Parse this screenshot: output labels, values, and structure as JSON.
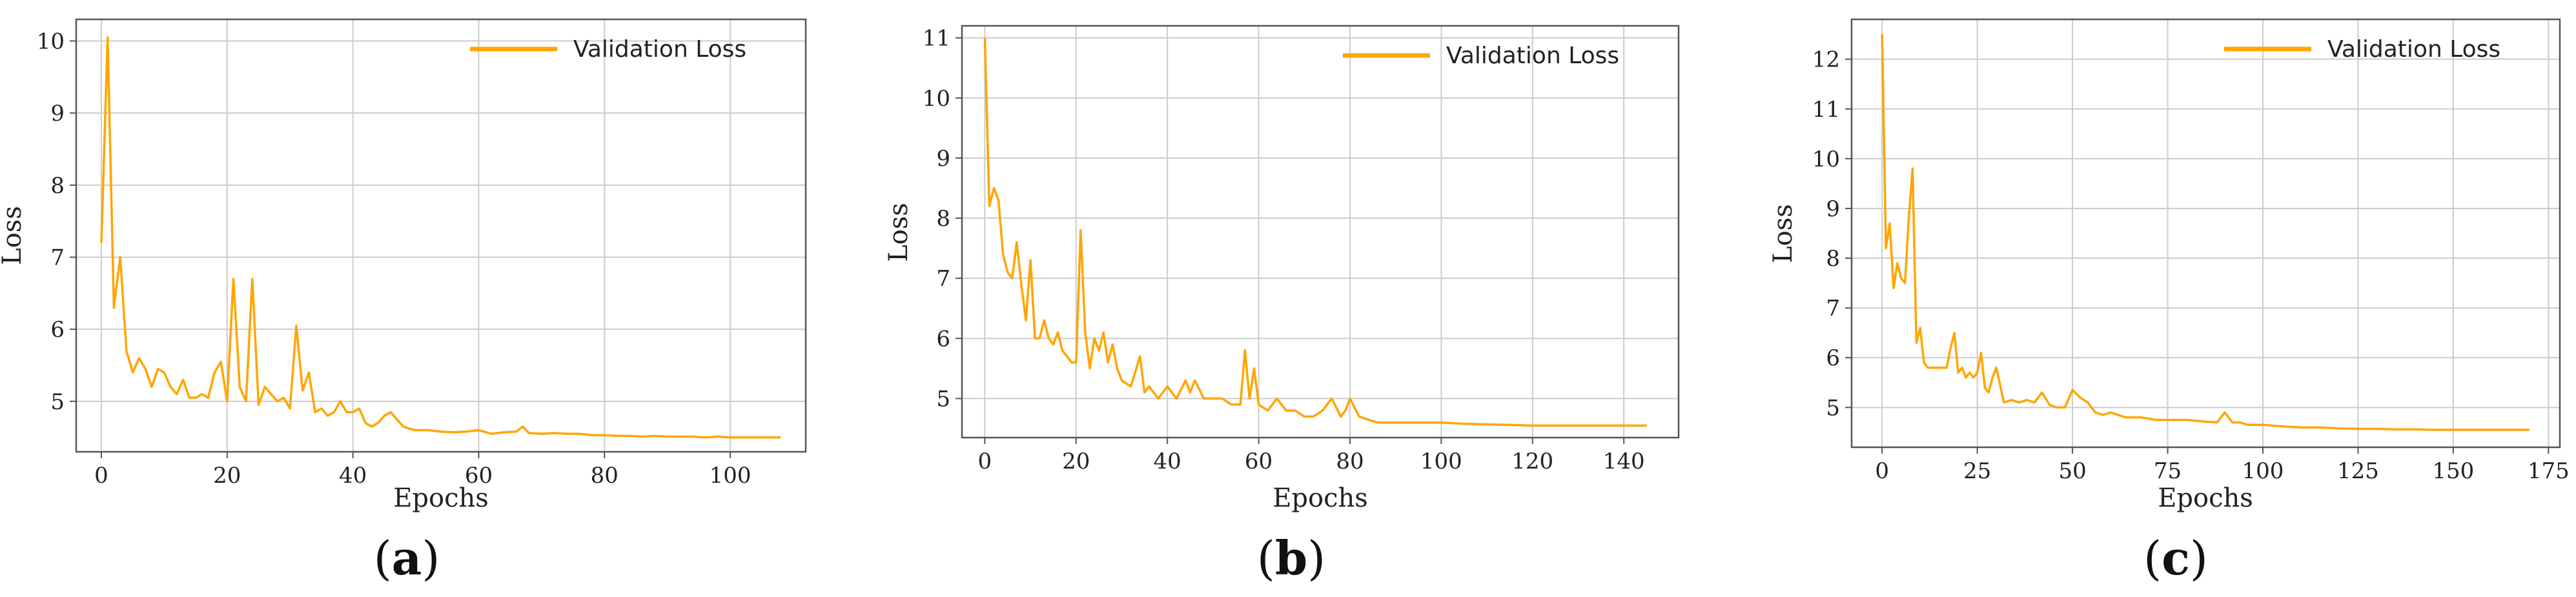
{
  "colors": {
    "line": "#FFA500",
    "grid": "#cccccc",
    "frame": "#555555"
  },
  "chart_data": [
    {
      "type": "line",
      "caption": "a",
      "xlabel": "Epochs",
      "ylabel": "Loss",
      "xlim": [
        -4,
        112
      ],
      "ylim": [
        4.3,
        10.3
      ],
      "xticks": [
        "0",
        "20",
        "40",
        "60",
        "80",
        "100"
      ],
      "yticks": [
        "5",
        "6",
        "7",
        "8",
        "9",
        "10"
      ],
      "grid": true,
      "legend_position": "top-right",
      "series": [
        {
          "name": "Validation Loss",
          "x": [
            0,
            1,
            2,
            3,
            4,
            5,
            6,
            7,
            8,
            9,
            10,
            11,
            12,
            13,
            14,
            15,
            16,
            17,
            18,
            19,
            20,
            21,
            22,
            23,
            24,
            25,
            26,
            27,
            28,
            29,
            30,
            31,
            32,
            33,
            34,
            35,
            36,
            37,
            38,
            39,
            40,
            41,
            42,
            43,
            44,
            45,
            46,
            47,
            48,
            49,
            50,
            52,
            54,
            56,
            58,
            60,
            62,
            64,
            66,
            67,
            68,
            70,
            72,
            74,
            76,
            78,
            80,
            82,
            84,
            86,
            88,
            90,
            92,
            94,
            96,
            98,
            100,
            102,
            104,
            106,
            108
          ],
          "y": [
            7.2,
            10.05,
            6.3,
            7.0,
            5.7,
            5.4,
            5.6,
            5.45,
            5.2,
            5.45,
            5.4,
            5.2,
            5.1,
            5.3,
            5.05,
            5.05,
            5.1,
            5.05,
            5.4,
            5.55,
            5.0,
            6.7,
            5.2,
            5.0,
            6.7,
            4.95,
            5.2,
            5.1,
            5.0,
            5.05,
            4.9,
            6.05,
            5.15,
            5.4,
            4.85,
            4.9,
            4.8,
            4.85,
            5.0,
            4.85,
            4.85,
            4.9,
            4.7,
            4.65,
            4.7,
            4.8,
            4.85,
            4.75,
            4.65,
            4.62,
            4.6,
            4.6,
            4.58,
            4.57,
            4.58,
            4.6,
            4.55,
            4.57,
            4.58,
            4.65,
            4.56,
            4.55,
            4.56,
            4.55,
            4.55,
            4.53,
            4.53,
            4.52,
            4.52,
            4.51,
            4.52,
            4.51,
            4.51,
            4.51,
            4.5,
            4.51,
            4.5,
            4.5,
            4.5,
            4.5,
            4.5
          ]
        }
      ]
    },
    {
      "type": "line",
      "caption": "b",
      "xlabel": "Epochs",
      "ylabel": "Loss",
      "xlim": [
        -5,
        152
      ],
      "ylim": [
        4.35,
        11.2
      ],
      "xticks": [
        "0",
        "20",
        "40",
        "60",
        "80",
        "100",
        "120",
        "140"
      ],
      "yticks": [
        "5",
        "6",
        "7",
        "8",
        "9",
        "10",
        "11"
      ],
      "grid": true,
      "legend_position": "top-right",
      "series": [
        {
          "name": "Validation Loss",
          "x": [
            0,
            1,
            2,
            3,
            4,
            5,
            6,
            7,
            8,
            9,
            10,
            11,
            12,
            13,
            14,
            15,
            16,
            17,
            18,
            19,
            20,
            21,
            22,
            23,
            24,
            25,
            26,
            27,
            28,
            29,
            30,
            32,
            34,
            35,
            36,
            38,
            40,
            42,
            44,
            45,
            46,
            48,
            50,
            52,
            54,
            56,
            57,
            58,
            59,
            60,
            62,
            64,
            66,
            68,
            70,
            72,
            74,
            76,
            78,
            79,
            80,
            82,
            84,
            86,
            88,
            90,
            92,
            94,
            96,
            98,
            100,
            105,
            110,
            115,
            120,
            125,
            130,
            135,
            140,
            145
          ],
          "y": [
            11.0,
            8.2,
            8.5,
            8.3,
            7.4,
            7.1,
            7.0,
            7.6,
            6.9,
            6.3,
            7.3,
            6.0,
            6.0,
            6.3,
            6.0,
            5.9,
            6.1,
            5.8,
            5.7,
            5.6,
            5.6,
            7.8,
            6.1,
            5.5,
            6.0,
            5.8,
            6.1,
            5.6,
            5.9,
            5.5,
            5.3,
            5.2,
            5.7,
            5.1,
            5.2,
            5.0,
            5.2,
            5.0,
            5.3,
            5.1,
            5.3,
            5.0,
            5.0,
            5.0,
            4.9,
            4.9,
            5.8,
            5.0,
            5.5,
            4.9,
            4.8,
            5.0,
            4.8,
            4.8,
            4.7,
            4.7,
            4.8,
            5.0,
            4.7,
            4.8,
            5.0,
            4.7,
            4.65,
            4.6,
            4.6,
            4.6,
            4.6,
            4.6,
            4.6,
            4.6,
            4.6,
            4.58,
            4.57,
            4.56,
            4.55,
            4.55,
            4.55,
            4.55,
            4.55,
            4.55
          ]
        }
      ]
    },
    {
      "type": "line",
      "caption": "c",
      "xlabel": "Epochs",
      "ylabel": "Loss",
      "xlim": [
        -8,
        178
      ],
      "ylim": [
        4.2,
        12.8
      ],
      "xticks": [
        "0",
        "25",
        "50",
        "75",
        "100",
        "125",
        "150",
        "175"
      ],
      "yticks": [
        "5",
        "6",
        "7",
        "8",
        "9",
        "10",
        "11",
        "12"
      ],
      "grid": true,
      "legend_position": "top-right",
      "series": [
        {
          "name": "Validation Loss",
          "x": [
            0,
            1,
            2,
            3,
            4,
            5,
            6,
            7,
            8,
            9,
            10,
            11,
            12,
            14,
            16,
            17,
            18,
            19,
            20,
            21,
            22,
            23,
            24,
            25,
            26,
            27,
            28,
            29,
            30,
            32,
            34,
            36,
            38,
            40,
            42,
            44,
            46,
            48,
            50,
            52,
            54,
            56,
            58,
            60,
            64,
            68,
            72,
            76,
            80,
            84,
            88,
            90,
            92,
            94,
            96,
            100,
            105,
            110,
            115,
            120,
            125,
            130,
            135,
            140,
            145,
            150,
            155,
            160,
            165,
            170
          ],
          "y": [
            12.5,
            8.2,
            8.7,
            7.4,
            7.9,
            7.6,
            7.5,
            8.8,
            9.8,
            6.3,
            6.6,
            5.9,
            5.8,
            5.8,
            5.8,
            5.8,
            6.2,
            6.5,
            5.7,
            5.8,
            5.6,
            5.7,
            5.6,
            5.7,
            6.1,
            5.4,
            5.3,
            5.6,
            5.8,
            5.1,
            5.15,
            5.1,
            5.15,
            5.1,
            5.3,
            5.05,
            5.0,
            5.0,
            5.35,
            5.2,
            5.1,
            4.9,
            4.85,
            4.9,
            4.8,
            4.8,
            4.75,
            4.75,
            4.75,
            4.72,
            4.7,
            4.9,
            4.7,
            4.7,
            4.65,
            4.65,
            4.62,
            4.6,
            4.6,
            4.58,
            4.57,
            4.57,
            4.56,
            4.56,
            4.55,
            4.55,
            4.55,
            4.55,
            4.55,
            4.55
          ]
        }
      ]
    }
  ]
}
